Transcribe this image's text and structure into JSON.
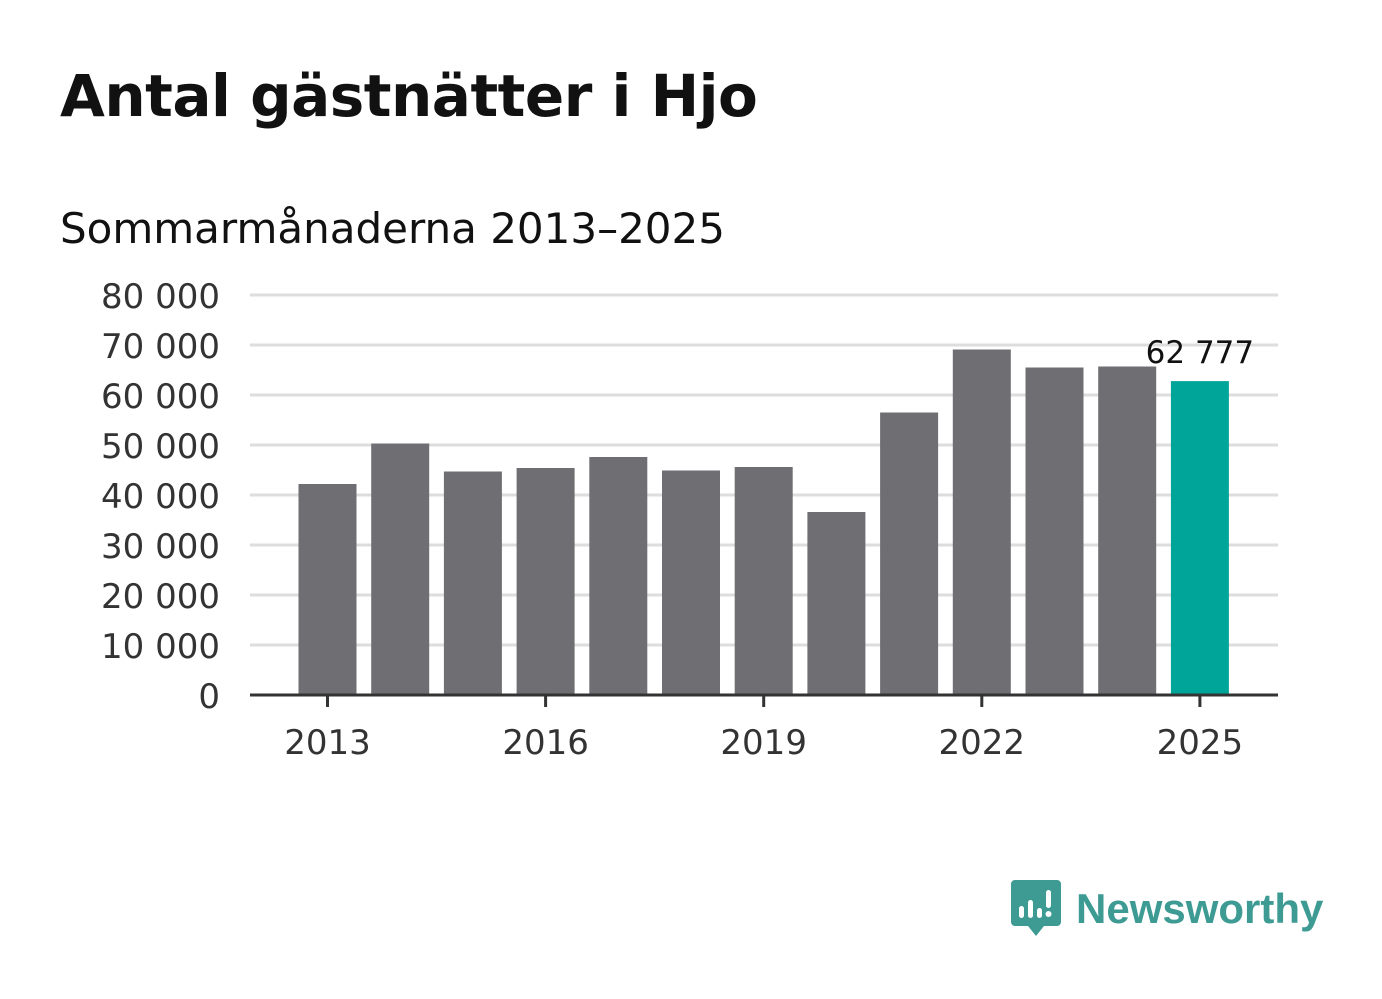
{
  "title": "Antal gästnätter i Hjo",
  "subtitle": "Sommarmånaderna 2013–2025",
  "logo": {
    "text": "Newsworthy",
    "color": "#3d9b93",
    "icon": "newsworthy-chart-bubble-icon"
  },
  "colors": {
    "bar": "#6f6e73",
    "highlight": "#00a59a",
    "grid": "#dddddd",
    "axis": "#333333"
  },
  "chart_data": {
    "type": "bar",
    "title": "Antal gästnätter i Hjo",
    "subtitle": "Sommarmånaderna 2013–2025",
    "categories": [
      "2013",
      "2014",
      "2015",
      "2016",
      "2017",
      "2018",
      "2019",
      "2020",
      "2021",
      "2022",
      "2023",
      "2024",
      "2025"
    ],
    "values": [
      42200,
      50300,
      44700,
      45400,
      47600,
      44900,
      45600,
      36600,
      56500,
      69100,
      65500,
      65700,
      62777
    ],
    "highlight_index": 12,
    "highlight_label": "62 777",
    "x_tick_labels": [
      "2013",
      "2016",
      "2019",
      "2022",
      "2025"
    ],
    "y_tick_labels": [
      "0",
      "10 000",
      "20 000",
      "30 000",
      "40 000",
      "50 000",
      "60 000",
      "70 000",
      "80 000"
    ],
    "y_ticks": [
      0,
      10000,
      20000,
      30000,
      40000,
      50000,
      60000,
      70000,
      80000
    ],
    "ylim": [
      0,
      80000
    ],
    "grid": true,
    "xlabel": "",
    "ylabel": ""
  }
}
